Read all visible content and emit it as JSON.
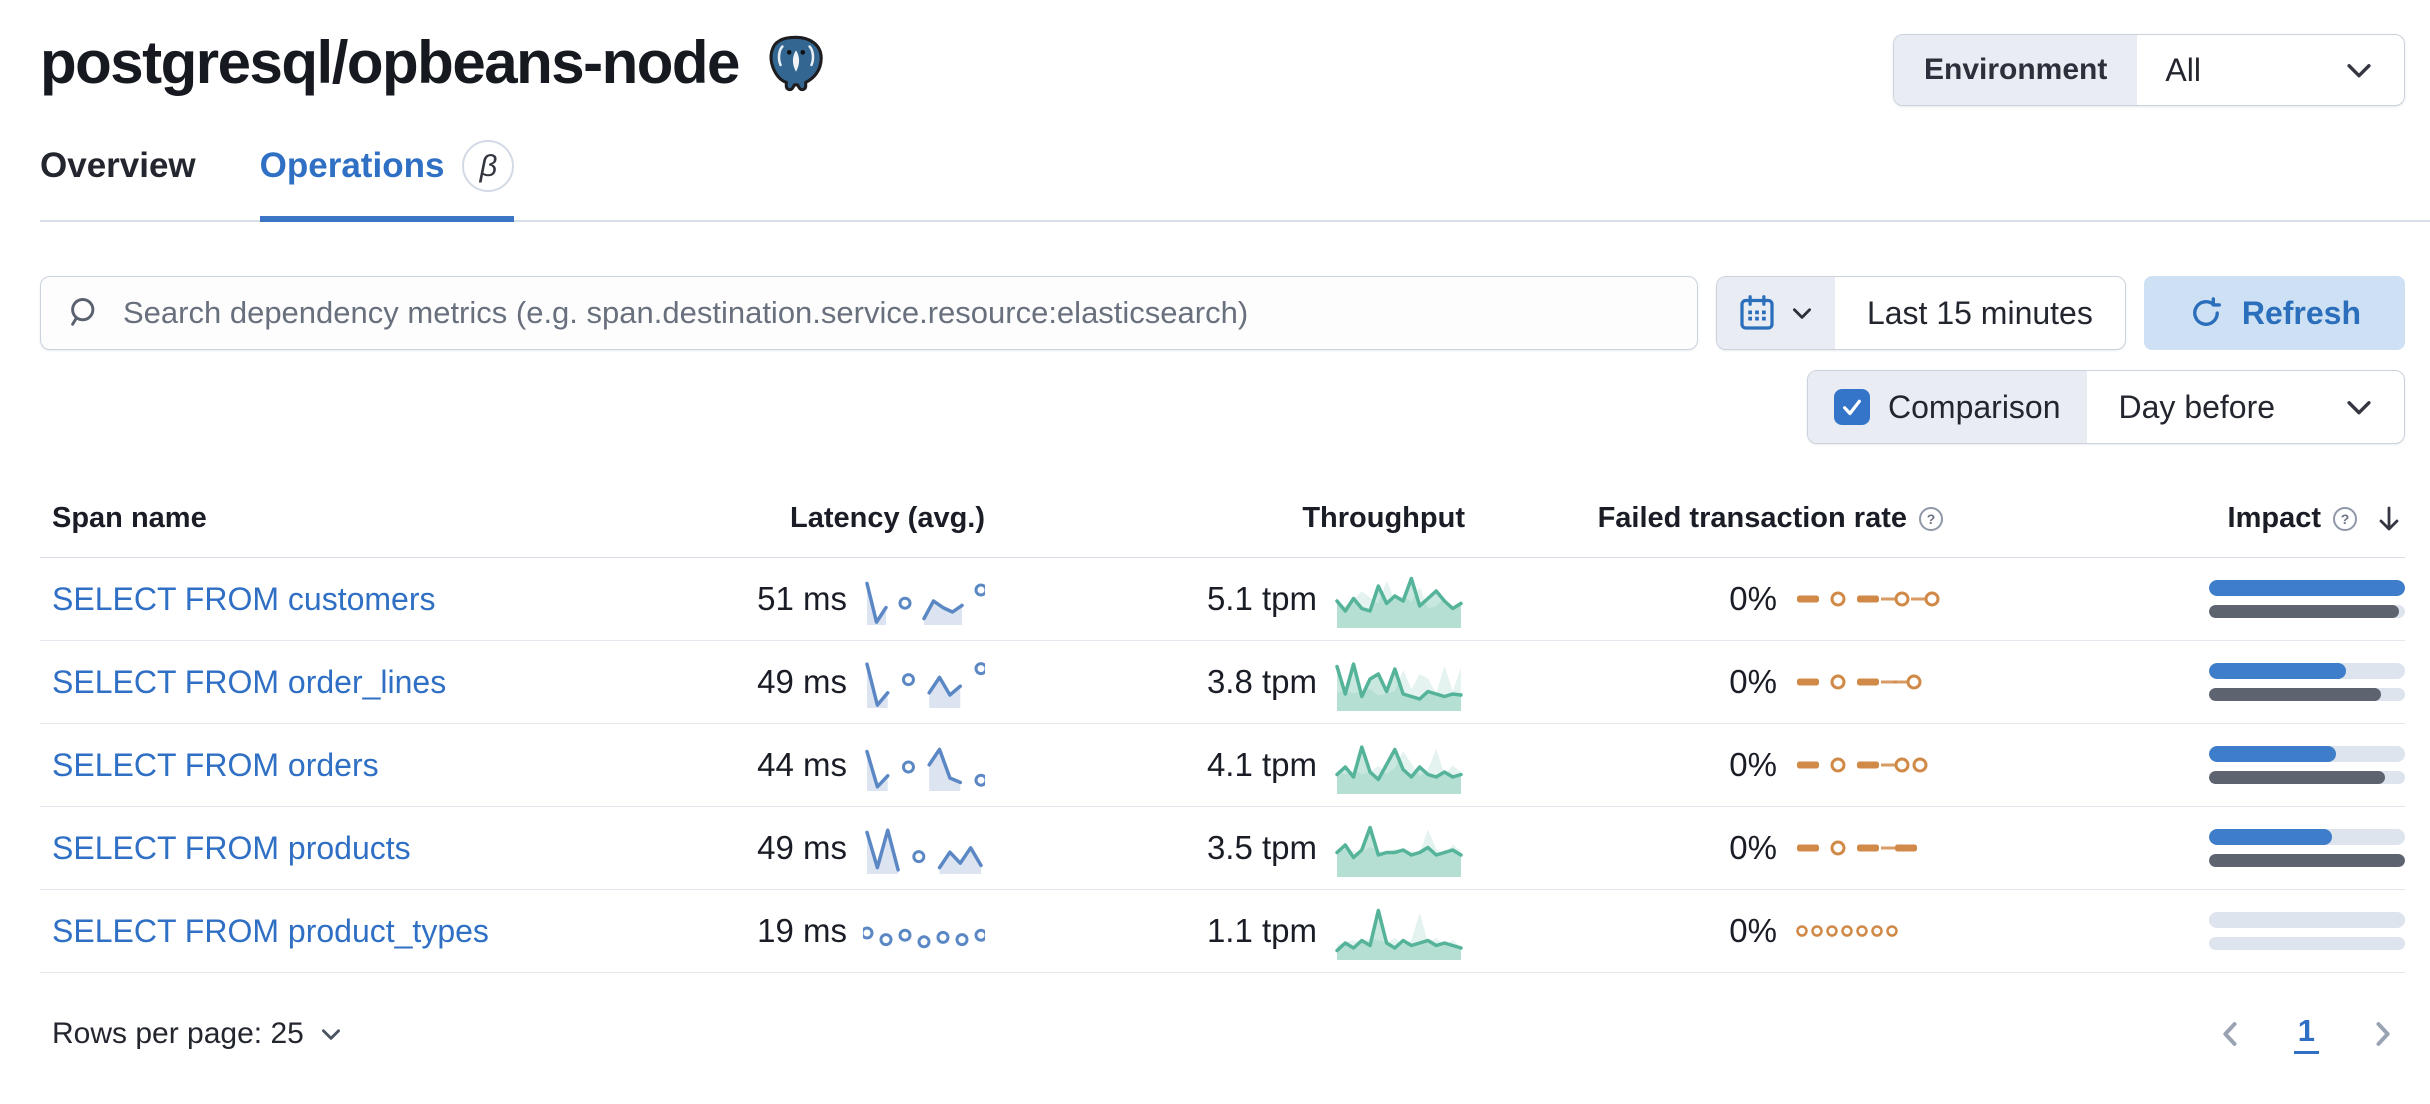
{
  "page": {
    "title": "postgresql/opbeans-node"
  },
  "environment": {
    "label": "Environment",
    "value": "All"
  },
  "tabs": [
    {
      "label": "Overview",
      "active": false
    },
    {
      "label": "Operations",
      "active": true,
      "badge": "β"
    }
  ],
  "search": {
    "placeholder": "Search dependency metrics (e.g. span.destination.service.resource:elasticsearch)"
  },
  "time_picker": {
    "value": "Last 15 minutes",
    "refresh_label": "Refresh"
  },
  "comparison": {
    "label": "Comparison",
    "checked": true,
    "value": "Day before"
  },
  "table": {
    "columns": [
      "Span name",
      "Latency (avg.)",
      "Throughput",
      "Failed transaction rate",
      "Impact"
    ],
    "rows": [
      {
        "span_name": "SELECT FROM customers",
        "latency": "51 ms",
        "throughput": "5.1 tpm",
        "failed_rate": "0%",
        "impact_current": 1.0,
        "impact_previous": 0.97,
        "latency_spark": [
          0.9,
          0.02,
          0.35,
          null,
          0.45,
          null,
          0.1,
          0.5,
          0.35,
          0.25,
          0.4,
          null,
          0.75
        ],
        "throughput_spark": [
          0.5,
          0.3,
          0.55,
          0.35,
          0.3,
          0.8,
          0.45,
          0.6,
          0.5,
          0.95,
          0.4,
          0.55,
          0.7,
          0.5,
          0.35,
          0.45
        ],
        "failed_spark": [
          "dash",
          "gap",
          "circle",
          "gap",
          "dash",
          "line",
          "circle",
          "line",
          "circle"
        ]
      },
      {
        "span_name": "SELECT FROM order_lines",
        "latency": "49 ms",
        "throughput": "3.8 tpm",
        "failed_rate": "0%",
        "impact_current": 0.7,
        "impact_previous": 0.88,
        "latency_spark": [
          0.95,
          0.02,
          0.3,
          null,
          0.6,
          null,
          0.3,
          0.65,
          0.25,
          0.45,
          null,
          0.85
        ],
        "throughput_spark": [
          0.85,
          0.3,
          0.9,
          0.25,
          0.6,
          0.7,
          0.35,
          0.8,
          0.3,
          0.25,
          0.2,
          0.35,
          0.3,
          0.25,
          0.3,
          0.28
        ],
        "failed_spark": [
          "dash",
          "gap",
          "circle",
          "gap",
          "dash",
          "line",
          "line",
          "circle"
        ]
      },
      {
        "span_name": "SELECT FROM orders",
        "latency": "44 ms",
        "throughput": "4.1 tpm",
        "failed_rate": "0%",
        "impact_current": 0.65,
        "impact_previous": 0.9,
        "latency_spark": [
          0.85,
          0.05,
          0.3,
          null,
          0.5,
          null,
          0.55,
          0.9,
          0.25,
          0.15,
          null,
          0.2
        ],
        "throughput_spark": [
          0.35,
          0.5,
          0.3,
          0.9,
          0.4,
          0.25,
          0.55,
          0.85,
          0.45,
          0.3,
          0.5,
          0.35,
          0.3,
          0.4,
          0.3,
          0.35
        ],
        "failed_spark": [
          "dash",
          "gap",
          "circle",
          "gap",
          "dash",
          "line",
          "circle",
          "circle"
        ]
      },
      {
        "span_name": "SELECT FROM products",
        "latency": "49 ms",
        "throughput": "3.5 tpm",
        "failed_rate": "0%",
        "impact_current": 0.63,
        "impact_previous": 1.0,
        "latency_spark": [
          0.9,
          0.1,
          0.95,
          0.05,
          null,
          0.35,
          null,
          0.1,
          0.45,
          0.2,
          0.55,
          0.15
        ],
        "throughput_spark": [
          0.45,
          0.6,
          0.35,
          0.5,
          0.95,
          0.4,
          0.45,
          0.45,
          0.5,
          0.4,
          0.45,
          0.55,
          0.4,
          0.45,
          0.5,
          0.4
        ],
        "failed_spark": [
          "dash",
          "gap",
          "circle",
          "gap",
          "dash",
          "line",
          "dash"
        ]
      },
      {
        "span_name": "SELECT FROM product_types",
        "latency": "19 ms",
        "throughput": "1.1 tpm",
        "failed_rate": "0%",
        "impact_current": 0.0,
        "impact_previous": 0.0,
        "latency_spark": [
          0.5,
          null,
          0.35,
          null,
          0.45,
          null,
          0.3,
          null,
          0.4,
          null,
          0.35,
          null,
          0.45
        ],
        "throughput_spark": [
          0.15,
          0.3,
          0.2,
          0.35,
          0.25,
          0.95,
          0.3,
          0.2,
          0.35,
          0.25,
          0.3,
          0.35,
          0.25,
          0.3,
          0.25,
          0.2
        ],
        "failed_spark": [
          "smallcircle",
          "smallcircle",
          "smallcircle",
          "smallcircle",
          "smallcircle",
          "smallcircle",
          "smallcircle"
        ]
      }
    ]
  },
  "footer": {
    "rows_per_page_label": "Rows per page: 25",
    "page": "1"
  },
  "colors": {
    "link_blue": "#2f6fc4",
    "spark_blue": "#5b88c4",
    "spark_blue_fill": "#dce4f2",
    "spark_green": "#54b399",
    "spark_green_fill": "rgba(84,179,153,0.32)",
    "spark_green_comparison_fill": "rgba(84,179,153,0.16)",
    "spark_orange": "#d18948",
    "impact_blue": "#3d7dc9",
    "impact_gray": "#5e646f",
    "impact_track": "#dde4ee"
  }
}
